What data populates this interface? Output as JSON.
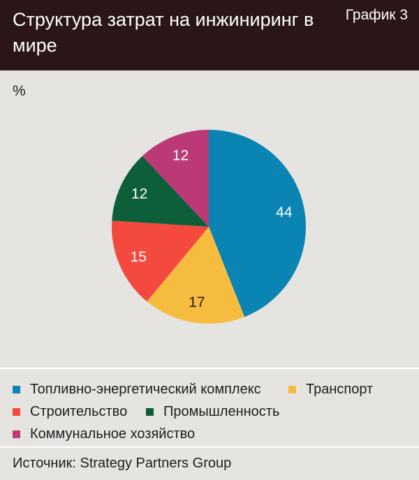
{
  "header": {
    "title": "Структура затрат на инжиниринг в мире",
    "chart_number": "График 3"
  },
  "unit_label": "%",
  "source": "Источник: Strategy Partners Group",
  "chart_data": {
    "type": "pie",
    "title": "Структура затрат на инжиниринг в мире",
    "unit": "%",
    "slices": [
      {
        "label": "Топливно-энергетический комплекс",
        "value": 44,
        "color": "#0a84b2"
      },
      {
        "label": "Транспорт",
        "value": 17,
        "color": "#f6bc3f"
      },
      {
        "label": "Строительство",
        "value": 15,
        "color": "#f3493f"
      },
      {
        "label": "Промышленность",
        "value": 12,
        "color": "#0c5f38"
      },
      {
        "label": "Коммунальное хозяйство",
        "value": 12,
        "color": "#bb3a76"
      }
    ],
    "legend_position": "bottom"
  }
}
